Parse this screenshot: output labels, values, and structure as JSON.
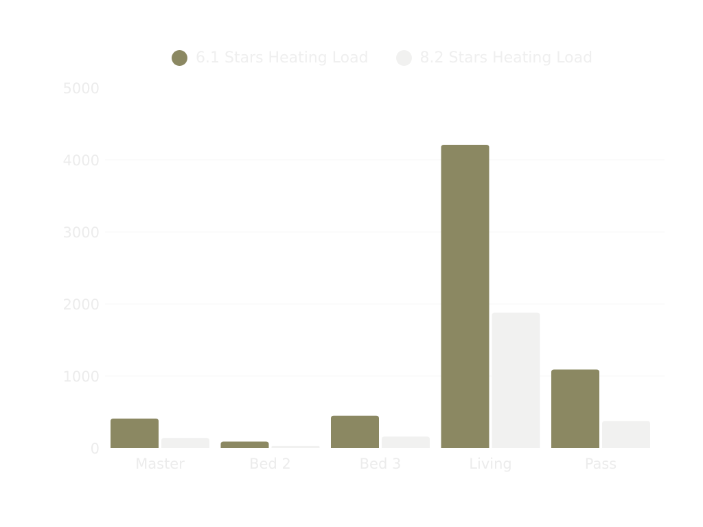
{
  "chart_data": {
    "type": "bar",
    "categories": [
      "Master",
      "Bed 2",
      "Bed 3",
      "Living",
      "Pass"
    ],
    "series": [
      {
        "name": "6.1 Stars Heating Load",
        "values": [
          410,
          90,
          450,
          4210,
          1090
        ],
        "color": "#8b8862"
      },
      {
        "name": "8.2 Stars Heating Load",
        "values": [
          140,
          30,
          160,
          1880,
          375
        ],
        "color": "#f1f1f0"
      }
    ],
    "yticks": [
      0,
      1000,
      2000,
      3000,
      4000,
      5000
    ],
    "ylim": [
      0,
      5000
    ],
    "legend_position": "top",
    "grid": true,
    "colors": {
      "axis_text": "#ececec",
      "legend_text": "#efefef",
      "gridline": "#f7f7f7"
    }
  }
}
